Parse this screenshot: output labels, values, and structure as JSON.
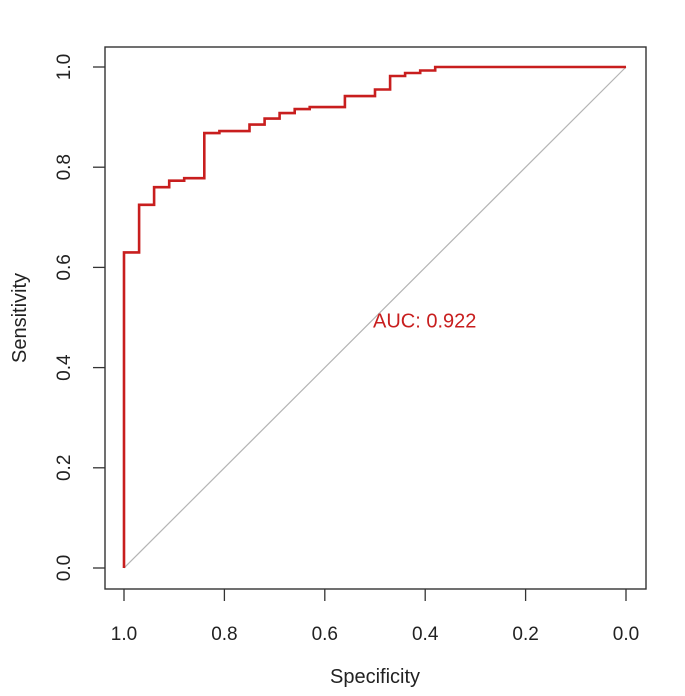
{
  "chart_data": {
    "type": "line",
    "title": "",
    "xlabel": "Specificity",
    "ylabel": "Sensitivity",
    "xlim": [
      1.0,
      0.0
    ],
    "ylim": [
      0.0,
      1.0
    ],
    "x_reversed": true,
    "grid": false,
    "x_ticks": [
      1.0,
      0.8,
      0.6,
      0.4,
      0.2,
      0.0
    ],
    "x_tick_labels": [
      "1.0",
      "0.8",
      "0.6",
      "0.4",
      "0.2",
      "0.0"
    ],
    "y_ticks": [
      0.0,
      0.2,
      0.4,
      0.6,
      0.8,
      1.0
    ],
    "y_tick_labels": [
      "0.0",
      "0.2",
      "0.4",
      "0.6",
      "0.8",
      "1.0"
    ],
    "annotation": {
      "text": "AUC: 0.922",
      "x": 0.5,
      "y": 0.48,
      "color": "#c81e1e"
    },
    "series": [
      {
        "name": "ROC curve",
        "color": "#c81e1e",
        "specificity": [
          1.0,
          1.0,
          0.97,
          0.97,
          0.94,
          0.94,
          0.91,
          0.91,
          0.88,
          0.88,
          0.84,
          0.84,
          0.81,
          0.81,
          0.75,
          0.75,
          0.72,
          0.72,
          0.69,
          0.69,
          0.66,
          0.66,
          0.63,
          0.63,
          0.56,
          0.56,
          0.5,
          0.5,
          0.47,
          0.47,
          0.44,
          0.44,
          0.41,
          0.41,
          0.38,
          0.38,
          0.0
        ],
        "sensitivity": [
          0.0,
          0.63,
          0.63,
          0.725,
          0.725,
          0.76,
          0.76,
          0.773,
          0.773,
          0.778,
          0.778,
          0.868,
          0.868,
          0.872,
          0.872,
          0.885,
          0.885,
          0.897,
          0.897,
          0.908,
          0.908,
          0.916,
          0.916,
          0.92,
          0.92,
          0.942,
          0.942,
          0.955,
          0.955,
          0.982,
          0.982,
          0.988,
          0.988,
          0.993,
          0.993,
          1.0,
          1.0
        ]
      },
      {
        "name": "Reference diagonal",
        "color": "#b4b4b4",
        "specificity": [
          1.0,
          0.0
        ],
        "sensitivity": [
          0.0,
          1.0
        ]
      }
    ]
  }
}
